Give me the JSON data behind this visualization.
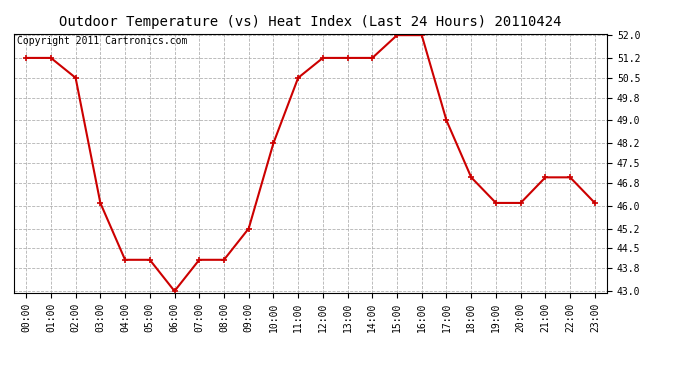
{
  "title": "Outdoor Temperature (vs) Heat Index (Last 24 Hours) 20110424",
  "copyright": "Copyright 2011 Cartronics.com",
  "x_labels": [
    "00:00",
    "01:00",
    "02:00",
    "03:00",
    "04:00",
    "05:00",
    "06:00",
    "07:00",
    "08:00",
    "09:00",
    "10:00",
    "11:00",
    "12:00",
    "13:00",
    "14:00",
    "15:00",
    "16:00",
    "17:00",
    "18:00",
    "19:00",
    "20:00",
    "21:00",
    "22:00",
    "23:00"
  ],
  "y_values": [
    51.2,
    51.2,
    50.5,
    46.1,
    44.1,
    44.1,
    43.0,
    44.1,
    44.1,
    45.2,
    48.2,
    50.5,
    51.2,
    51.2,
    51.2,
    52.0,
    52.0,
    49.0,
    47.0,
    46.1,
    46.1,
    47.0,
    47.0,
    46.1
  ],
  "ylim_min": 43.0,
  "ylim_max": 52.0,
  "yticks": [
    43.0,
    43.8,
    44.5,
    45.2,
    46.0,
    46.8,
    47.5,
    48.2,
    49.0,
    49.8,
    50.5,
    51.2,
    52.0
  ],
  "line_color": "#cc0000",
  "marker": "+",
  "marker_size": 5,
  "marker_color": "#cc0000",
  "bg_color": "#ffffff",
  "plot_bg_color": "#ffffff",
  "grid_color": "#aaaaaa",
  "title_fontsize": 10,
  "copyright_fontsize": 7,
  "tick_fontsize": 7,
  "line_width": 1.5
}
